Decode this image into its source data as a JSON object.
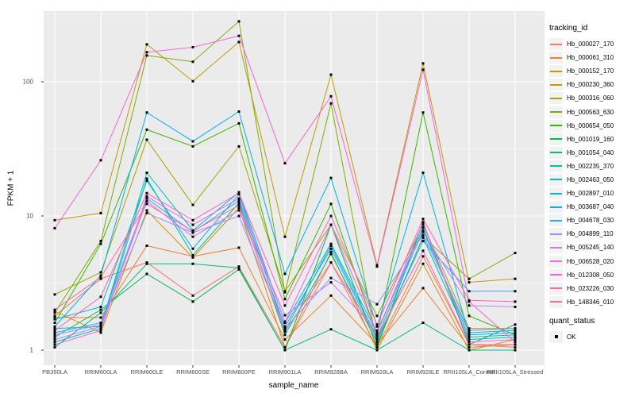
{
  "figure": {
    "y_axis_title": "FPKM + 1",
    "x_axis_title": "sample_name",
    "legend_title": "tracking_id",
    "quant_legend_title": "quant_status",
    "quant_ok_label": "OK"
  },
  "colors": {
    "panel_bg": "#EBEBEB",
    "grid": "#FFFFFF",
    "point": "#000000",
    "tick_text": "#4D4D4D",
    "tick_mark": "#333333",
    "legend_key_bg": "#F2F2F2"
  },
  "chart_data": {
    "type": "line",
    "title": "",
    "xlabel": "sample_name",
    "ylabel": "FPKM + 1",
    "y_scale": "log10",
    "ylim": [
      0.77,
      336
    ],
    "y_major_ticks": [
      1,
      10,
      100
    ],
    "y_tick_labels": [
      "1",
      "10",
      "100"
    ],
    "y_minor_ticks": [
      3.162,
      31.62,
      316.2
    ],
    "grid": true,
    "legend_position": "right",
    "legend_title": "tracking_id",
    "marker": "black-square",
    "categories": [
      "PB350LA",
      "RRIM600LA",
      "RRIM600LE",
      "RRIM600SE",
      "RRIM600PE",
      "RRIM901LA",
      "RRIM928BA",
      "RRIM928LA",
      "RRIM928LE",
      "RRII105LA_Control",
      "RRII105LA_Stressed"
    ],
    "series": [
      {
        "name": "Hb_000027_170",
        "color": "#F8766D",
        "values": [
          1.8,
          3.4,
          4.5,
          2.55,
          4.2,
          1.05,
          4.5,
          1.05,
          5.0,
          1.1,
          1.05
        ]
      },
      {
        "name": "Hb_000061_310",
        "color": "#EA8331",
        "values": [
          1.75,
          1.75,
          6.0,
          5.0,
          5.8,
          1.2,
          2.55,
          1.1,
          2.9,
          1.05,
          1.1
        ]
      },
      {
        "name": "Hb_000152_170",
        "color": "#D89000",
        "values": [
          1.95,
          1.35,
          11.0,
          4.9,
          11.5,
          1.05,
          5.4,
          1.0,
          4.4,
          1.0,
          1.2
        ]
      },
      {
        "name": "Hb_000230_360",
        "color": "#C09B00",
        "values": [
          9.3,
          10.5,
          190,
          101,
          198,
          7.0,
          113,
          4.3,
          137,
          3.2,
          3.4
        ]
      },
      {
        "name": "Hb_000316_060",
        "color": "#A3A500",
        "values": [
          2.6,
          3.8,
          37,
          12.1,
          33,
          2.75,
          8.6,
          1.8,
          8.6,
          1.45,
          1.45
        ]
      },
      {
        "name": "Hb_000563_630",
        "color": "#7CAE00",
        "values": [
          1.9,
          6.5,
          157,
          141,
          282,
          2.7,
          69,
          1.1,
          7.0,
          3.4,
          5.3
        ]
      },
      {
        "name": "Hb_000654_050",
        "color": "#39B600",
        "values": [
          1.6,
          6.2,
          44,
          33,
          49,
          2.4,
          12.3,
          1.3,
          59,
          1.8,
          1.3
        ]
      },
      {
        "name": "Hb_001019_160",
        "color": "#00BB4E",
        "values": [
          1.25,
          2.0,
          3.7,
          2.3,
          4.0,
          1.0,
          8.6,
          1.05,
          9.0,
          1.1,
          1.55
        ]
      },
      {
        "name": "Hb_001054_040",
        "color": "#00BF7D",
        "values": [
          1.05,
          1.9,
          4.4,
          4.4,
          4.1,
          1.0,
          1.43,
          1.0,
          1.6,
          1.0,
          1.0
        ]
      },
      {
        "name": "Hb_002235_370",
        "color": "#00C1A3",
        "values": [
          1.15,
          1.45,
          19,
          5.1,
          12.5,
          1.3,
          5.2,
          1.15,
          6.9,
          1.2,
          1.25
        ]
      },
      {
        "name": "Hb_002463_050",
        "color": "#00BFC4",
        "values": [
          1.45,
          1.5,
          21,
          7.8,
          15,
          1.6,
          6.2,
          1.35,
          8.2,
          1.25,
          1.3
        ]
      },
      {
        "name": "Hb_002897_010",
        "color": "#00BAE0",
        "values": [
          1.7,
          2.1,
          18.3,
          5.7,
          14.5,
          1.4,
          6.0,
          1.25,
          7.8,
          1.35,
          1.4
        ]
      },
      {
        "name": "Hb_003687_040",
        "color": "#00B0F6",
        "values": [
          1.5,
          3.6,
          59,
          36,
          60,
          3.7,
          19.2,
          1.5,
          21,
          1.3,
          1.35
        ]
      },
      {
        "name": "Hb_004678_030",
        "color": "#35A2FF",
        "values": [
          1.35,
          1.6,
          13.5,
          7.6,
          13,
          1.5,
          5.7,
          1.2,
          6.5,
          2.75,
          2.75
        ]
      },
      {
        "name": "Hb_004899_110",
        "color": "#9590FF",
        "values": [
          1.3,
          1.55,
          10.5,
          7.5,
          10,
          1.45,
          3.45,
          2.2,
          7.2,
          1.4,
          1.45
        ]
      },
      {
        "name": "Hb_005245_140",
        "color": "#C77CFF",
        "values": [
          1.2,
          1.5,
          12.9,
          7.0,
          11,
          1.82,
          3.2,
          1.4,
          7.6,
          2.15,
          2.1
        ]
      },
      {
        "name": "Hb_006528_020",
        "color": "#E76BF3",
        "values": [
          1.1,
          1.4,
          14.0,
          8.6,
          13.5,
          1.63,
          8.6,
          1.35,
          8.9,
          1.15,
          1.2
        ]
      },
      {
        "name": "Hb_012308_050",
        "color": "#FA62DB",
        "values": [
          8.1,
          26,
          166,
          181,
          220,
          24.7,
          78,
          4.2,
          123,
          2.3,
          1.15
        ]
      },
      {
        "name": "Hb_023226_030",
        "color": "#FF62BC",
        "values": [
          1.4,
          2.5,
          14.8,
          9.3,
          14.8,
          2.15,
          10,
          1.55,
          9.5,
          2.35,
          2.3
        ]
      },
      {
        "name": "Hb_148346_010",
        "color": "#FF6C91",
        "values": [
          2.0,
          3.5,
          12.3,
          7.7,
          12,
          1.37,
          4.5,
          1.25,
          5.5,
          1.1,
          1.1
        ]
      }
    ],
    "point_legend": {
      "title": "quant_status",
      "items": [
        {
          "label": "OK",
          "color": "#000000"
        }
      ]
    }
  }
}
